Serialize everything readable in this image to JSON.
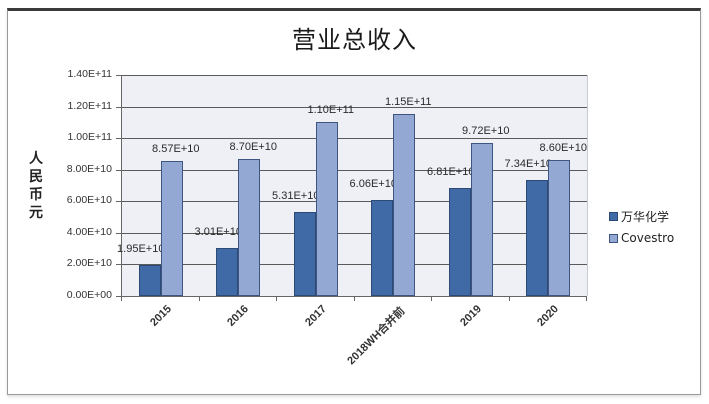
{
  "chart_data": {
    "type": "bar",
    "title": "营业总收入",
    "xlabel": "",
    "ylabel": "人民币元",
    "ylim": [
      0,
      140000000000
    ],
    "yticks": [
      "0.00E+00",
      "2.00E+10",
      "4.00E+10",
      "6.00E+10",
      "8.00E+10",
      "1.00E+11",
      "1.20E+11",
      "1.40E+11"
    ],
    "grid": true,
    "legend_position": "right",
    "categories": [
      "2015",
      "2016",
      "2017",
      "2018WH合并前",
      "2019",
      "2020"
    ],
    "series": [
      {
        "name": "万华化学",
        "color": "#3f6aa5",
        "values": [
          19500000000,
          30100000000,
          53100000000,
          60600000000,
          68100000000,
          73400000000
        ],
        "labels": [
          "1.95E+10",
          "3.01E+10",
          "5.31E+10",
          "6.06E+10",
          "6.81E+10",
          "7.34E+10"
        ]
      },
      {
        "name": "Covestro",
        "color": "#93a9d4",
        "values": [
          85700000000,
          87000000000,
          110000000000,
          115000000000,
          97200000000,
          86000000000
        ],
        "labels": [
          "8.57E+10",
          "8.70E+10",
          "1.10E+11",
          "1.15E+11",
          "9.72E+10",
          "8.60E+10"
        ]
      }
    ]
  },
  "title": "营业总收入",
  "y_axis_title": [
    "人",
    "民",
    "币",
    "元"
  ],
  "legend": [
    {
      "label": "万华化学",
      "color": "#3f6aa5"
    },
    {
      "label": "Covestro",
      "color": "#93a9d4"
    }
  ]
}
